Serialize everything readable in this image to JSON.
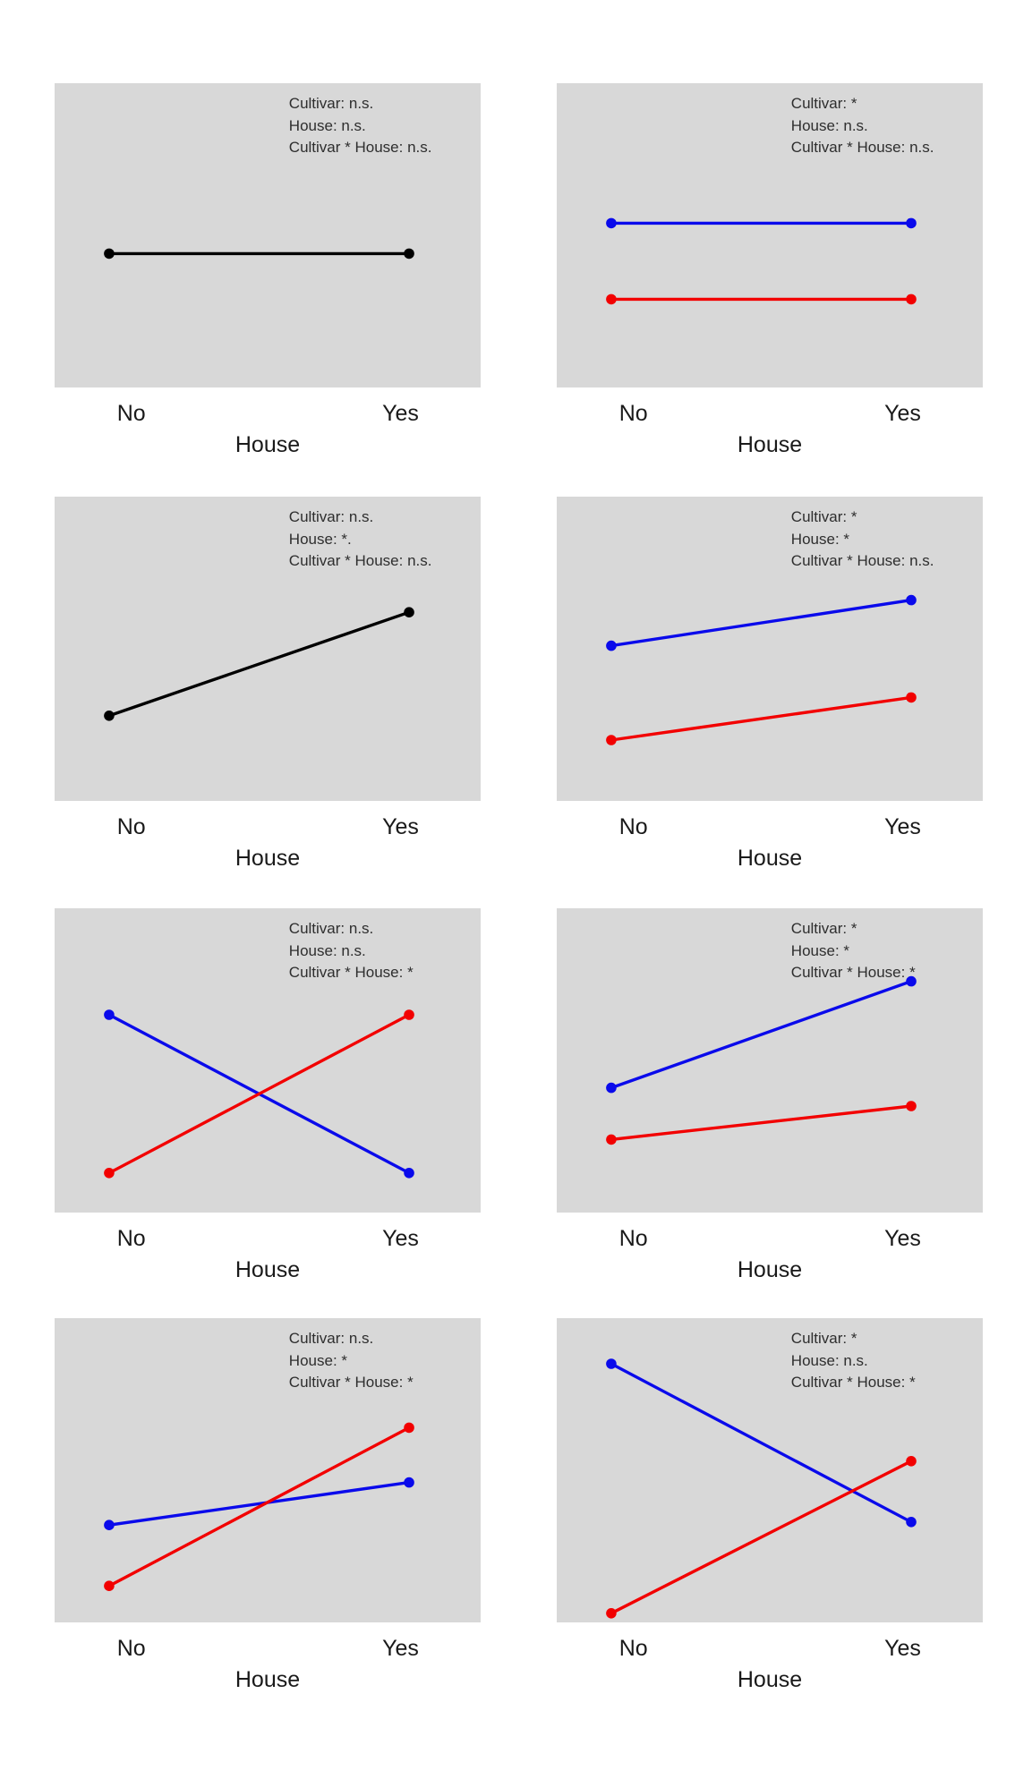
{
  "figure": {
    "bg": "#ffffff",
    "panel_bg": "#d8d8d8",
    "colors": {
      "black": "#000000",
      "blue": "#0a0aeb",
      "red": "#f20000"
    },
    "annotation_text_color": "#2e2e2e",
    "axis_text_color": "#1a1a1a"
  },
  "chart_data": [
    {
      "panel": "row-1-col-1",
      "type": "line",
      "x_categories": [
        "No",
        "Yes"
      ],
      "xlabel": "House",
      "y_axis_shown": false,
      "ylim": [
        0,
        1
      ],
      "grid": false,
      "legend": "none",
      "annotation_lines": [
        "Cultivar: n.s.",
        "House: n.s.",
        "Cultivar * House: n.s."
      ],
      "series": [
        {
          "name": "overall-mean",
          "color_key": "black",
          "values": [
            0.44,
            0.44
          ]
        }
      ]
    },
    {
      "panel": "row-1-col-2",
      "type": "line",
      "x_categories": [
        "No",
        "Yes"
      ],
      "xlabel": "House",
      "y_axis_shown": false,
      "ylim": [
        0,
        1
      ],
      "grid": false,
      "legend": "none",
      "annotation_lines": [
        "Cultivar: *",
        "House: n.s.",
        "Cultivar * House: n.s."
      ],
      "series": [
        {
          "name": "cultivar-blue",
          "color_key": "blue",
          "values": [
            0.54,
            0.54
          ]
        },
        {
          "name": "cultivar-red",
          "color_key": "red",
          "values": [
            0.29,
            0.29
          ]
        }
      ]
    },
    {
      "panel": "row-2-col-1",
      "type": "line",
      "x_categories": [
        "No",
        "Yes"
      ],
      "xlabel": "House",
      "y_axis_shown": false,
      "ylim": [
        0,
        1
      ],
      "grid": false,
      "legend": "none",
      "annotation_lines": [
        "Cultivar: n.s.",
        "House: *.",
        "Cultivar * House: n.s."
      ],
      "series": [
        {
          "name": "overall-mean",
          "color_key": "black",
          "values": [
            0.28,
            0.62
          ]
        }
      ]
    },
    {
      "panel": "row-2-col-2",
      "type": "line",
      "x_categories": [
        "No",
        "Yes"
      ],
      "xlabel": "House",
      "y_axis_shown": false,
      "ylim": [
        0,
        1
      ],
      "grid": false,
      "legend": "none",
      "annotation_lines": [
        "Cultivar: *",
        "House: *",
        "Cultivar * House: n.s."
      ],
      "series": [
        {
          "name": "cultivar-blue",
          "color_key": "blue",
          "values": [
            0.51,
            0.66
          ]
        },
        {
          "name": "cultivar-red",
          "color_key": "red",
          "values": [
            0.2,
            0.34
          ]
        }
      ]
    },
    {
      "panel": "row-3-col-1",
      "type": "line",
      "x_categories": [
        "No",
        "Yes"
      ],
      "xlabel": "House",
      "y_axis_shown": false,
      "ylim": [
        0,
        1
      ],
      "grid": false,
      "legend": "none",
      "annotation_lines": [
        "Cultivar: n.s.",
        "House: n.s.",
        "Cultivar * House: *"
      ],
      "series": [
        {
          "name": "cultivar-blue",
          "color_key": "blue",
          "values": [
            0.65,
            0.13
          ]
        },
        {
          "name": "cultivar-red",
          "color_key": "red",
          "values": [
            0.13,
            0.65
          ]
        }
      ]
    },
    {
      "panel": "row-3-col-2",
      "type": "line",
      "x_categories": [
        "No",
        "Yes"
      ],
      "xlabel": "House",
      "y_axis_shown": false,
      "ylim": [
        0,
        1
      ],
      "grid": false,
      "legend": "none",
      "annotation_lines": [
        "Cultivar: *",
        "House: *",
        "Cultivar * House: *"
      ],
      "series": [
        {
          "name": "cultivar-blue",
          "color_key": "blue",
          "values": [
            0.41,
            0.76
          ]
        },
        {
          "name": "cultivar-red",
          "color_key": "red",
          "values": [
            0.24,
            0.35
          ]
        }
      ]
    },
    {
      "panel": "row-4-col-1",
      "type": "line",
      "x_categories": [
        "No",
        "Yes"
      ],
      "xlabel": "House",
      "y_axis_shown": false,
      "ylim": [
        0,
        1
      ],
      "grid": false,
      "legend": "none",
      "annotation_lines": [
        "Cultivar: n.s.",
        "House: *",
        "Cultivar * House: *"
      ],
      "series": [
        {
          "name": "cultivar-blue",
          "color_key": "blue",
          "values": [
            0.32,
            0.46
          ]
        },
        {
          "name": "cultivar-red",
          "color_key": "red",
          "values": [
            0.12,
            0.64
          ]
        }
      ]
    },
    {
      "panel": "row-4-col-2",
      "type": "line",
      "x_categories": [
        "No",
        "Yes"
      ],
      "xlabel": "House",
      "y_axis_shown": false,
      "ylim": [
        0,
        1
      ],
      "grid": false,
      "legend": "none",
      "annotation_lines": [
        "Cultivar: *",
        "House: n.s.",
        "Cultivar * House: *"
      ],
      "series": [
        {
          "name": "cultivar-blue",
          "color_key": "blue",
          "values": [
            0.85,
            0.33
          ]
        },
        {
          "name": "cultivar-red",
          "color_key": "red",
          "values": [
            0.03,
            0.53
          ]
        }
      ]
    }
  ]
}
